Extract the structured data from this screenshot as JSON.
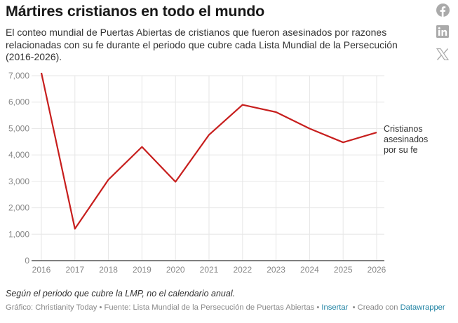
{
  "header": {
    "title": "Mártires cristianos en todo el mundo",
    "description": "El conteo mundial de Puertas Abiertas de cristianos que fueron asesinados por razones relacionadas con su fe durante el periodo que cubre cada Lista Mundial de la Persecución (2016-2026)."
  },
  "share": [
    {
      "name": "facebook-icon",
      "label": "Facebook"
    },
    {
      "name": "linkedin-icon",
      "label": "LinkedIn"
    },
    {
      "name": "x-icon",
      "label": "X"
    }
  ],
  "colors": {
    "line": "#c71e1d",
    "grid": "#e6e6e6",
    "axis": "#333333",
    "link": "#1d81a2",
    "share_icon": "#aaaaaa"
  },
  "chart_data": {
    "type": "line",
    "title": "Mártires cristianos en todo el mundo",
    "xlabel": "",
    "ylabel": "",
    "x": [
      "2016",
      "2017",
      "2018",
      "2019",
      "2020",
      "2021",
      "2022",
      "2023",
      "2024",
      "2025",
      "2026"
    ],
    "series": [
      {
        "name": "Cristianos asesinados por su fe",
        "label_lines": [
          "Cristianos",
          "asesinados",
          "por su fe"
        ],
        "values": [
          7106,
          1207,
          3066,
          4305,
          2983,
          4761,
          5898,
          5621,
          4998,
          4476,
          4849
        ]
      }
    ],
    "ylim": [
      0,
      7000
    ],
    "yticks": [
      0,
      1000,
      2000,
      3000,
      4000,
      5000,
      6000,
      7000
    ],
    "ytick_labels": [
      "0",
      "1,000",
      "2,000",
      "3,000",
      "4,000",
      "5,000",
      "6,000",
      "7,000"
    ],
    "grid": true,
    "legend": "direct-label-right"
  },
  "footer": {
    "notes": "Según el periodo que cubre la LMP, no el calendario anual.",
    "chart_by_prefix": "Gráfico: Christianity Today",
    "separator": " • ",
    "source": "Fuente: Lista Mundial de la Persecución de Puertas Abiertas",
    "embed_link": "Insertar",
    "created_prefix": "Creado con ",
    "created_link": "Datawrapper"
  }
}
